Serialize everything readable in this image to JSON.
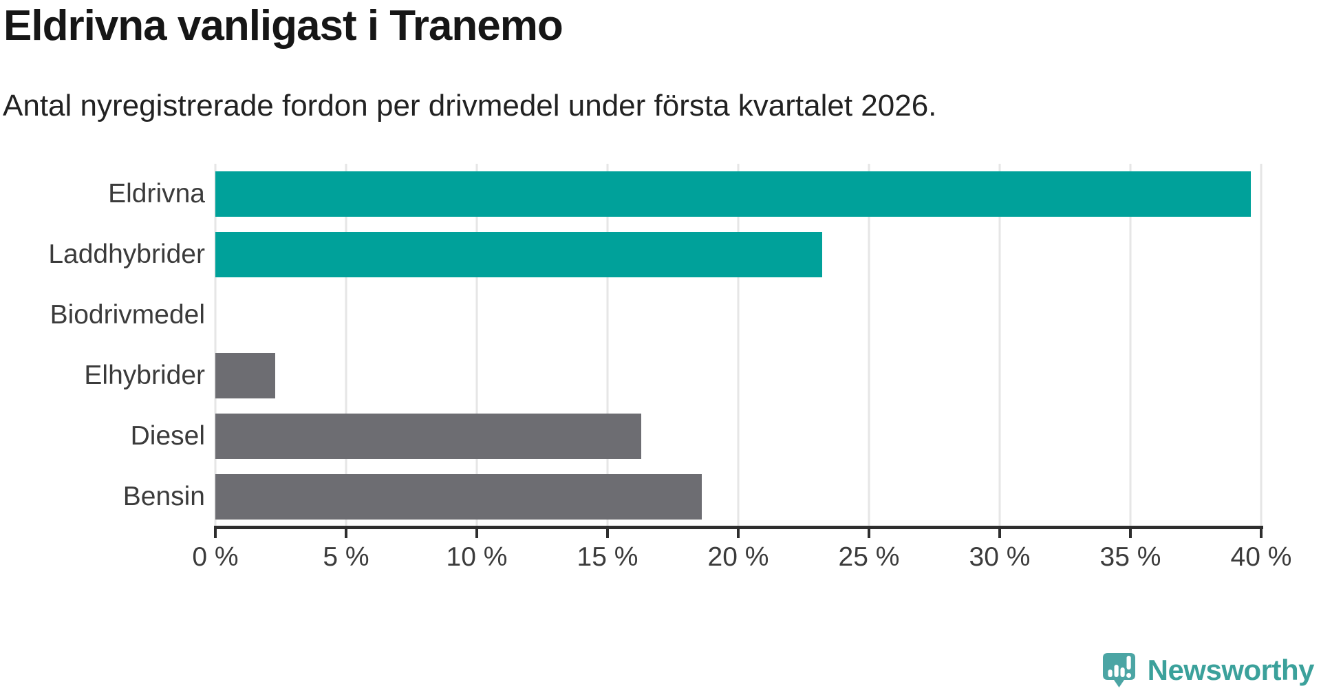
{
  "header": {
    "title": "Eldrivna vanligast i Tranemo",
    "subtitle": "Antal nyregistrerade fordon per drivmedel under första kvartalet 2026."
  },
  "chart_data": {
    "type": "bar",
    "orientation": "horizontal",
    "title": "Eldrivna vanligast i Tranemo",
    "subtitle": "Antal nyregistrerade fordon per drivmedel under första kvartalet 2026.",
    "categories": [
      "Eldrivna",
      "Laddhybrider",
      "Biodrivmedel",
      "Elhybrider",
      "Diesel",
      "Bensin"
    ],
    "values": [
      39.6,
      23.2,
      0,
      2.3,
      16.3,
      18.6
    ],
    "unit": "%",
    "xlim": [
      0,
      40
    ],
    "x_ticks": [
      0,
      5,
      10,
      15,
      20,
      25,
      30,
      35,
      40
    ],
    "x_tick_labels": [
      "0 %",
      "5 %",
      "10 %",
      "15 %",
      "20 %",
      "25 %",
      "30 %",
      "35 %",
      "40 %"
    ],
    "grid": "vertical",
    "legend": "none",
    "bar_colors": [
      "#00a19a",
      "#00a19a",
      "#00a19a",
      "#6d6d72",
      "#6d6d72",
      "#6d6d72"
    ],
    "highlight_color": "#00a19a",
    "default_color": "#6d6d72",
    "gridline_color": "#e6e6e6",
    "axis_color": "#2e2e2e"
  },
  "branding": {
    "logo_text": "Newsworthy",
    "logo_text_color": "#3ba19b",
    "logo_icon": "newsworthy-chart-bubble-icon",
    "logo_icon_color": "#4ba5a4"
  }
}
